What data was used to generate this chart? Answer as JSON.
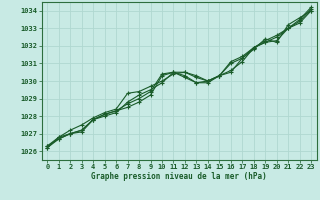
{
  "background_color": "#c8eae4",
  "grid_color": "#b0d8d0",
  "line_color": "#1a5c2a",
  "spine_color": "#2d6e3e",
  "title": "Graphe pression niveau de la mer (hPa)",
  "xlim": [
    -0.5,
    23.5
  ],
  "ylim": [
    1025.5,
    1034.5
  ],
  "yticks": [
    1026,
    1027,
    1028,
    1029,
    1030,
    1031,
    1032,
    1033,
    1034
  ],
  "xticks": [
    0,
    1,
    2,
    3,
    4,
    5,
    6,
    7,
    8,
    9,
    10,
    11,
    12,
    13,
    14,
    15,
    16,
    17,
    18,
    19,
    20,
    21,
    22,
    23
  ],
  "series": [
    [
      1026.3,
      1026.8,
      1027.0,
      1027.2,
      1027.8,
      1028.1,
      1028.3,
      1028.5,
      1028.8,
      1029.2,
      1030.3,
      1030.5,
      1030.2,
      1029.9,
      1029.9,
      1030.3,
      1030.6,
      1031.1,
      1031.9,
      1032.2,
      1032.5,
      1033.0,
      1033.3,
      1034.0
    ],
    [
      1026.3,
      1026.7,
      1027.0,
      1027.1,
      1027.8,
      1028.1,
      1028.3,
      1028.7,
      1029.0,
      1029.4,
      1030.4,
      1030.5,
      1030.5,
      1030.2,
      1030.0,
      1030.3,
      1031.1,
      1031.4,
      1031.9,
      1032.3,
      1032.6,
      1033.0,
      1033.4,
      1034.1
    ],
    [
      1026.2,
      1026.8,
      1027.2,
      1027.5,
      1027.9,
      1028.2,
      1028.4,
      1029.3,
      1029.4,
      1029.7,
      1030.0,
      1030.4,
      1030.5,
      1030.3,
      1030.0,
      1030.3,
      1031.0,
      1031.3,
      1031.9,
      1032.2,
      1032.3,
      1033.0,
      1033.5,
      1034.2
    ],
    [
      1026.2,
      1026.7,
      1027.0,
      1027.2,
      1027.8,
      1028.0,
      1028.2,
      1028.8,
      1029.2,
      1029.5,
      1029.9,
      1030.5,
      1030.3,
      1029.9,
      1030.0,
      1030.3,
      1030.5,
      1031.3,
      1031.8,
      1032.4,
      1032.2,
      1033.2,
      1033.6,
      1034.0
    ]
  ],
  "title_fontsize": 5.5,
  "tick_fontsize": 5,
  "marker_size": 2.5,
  "line_width": 0.8
}
